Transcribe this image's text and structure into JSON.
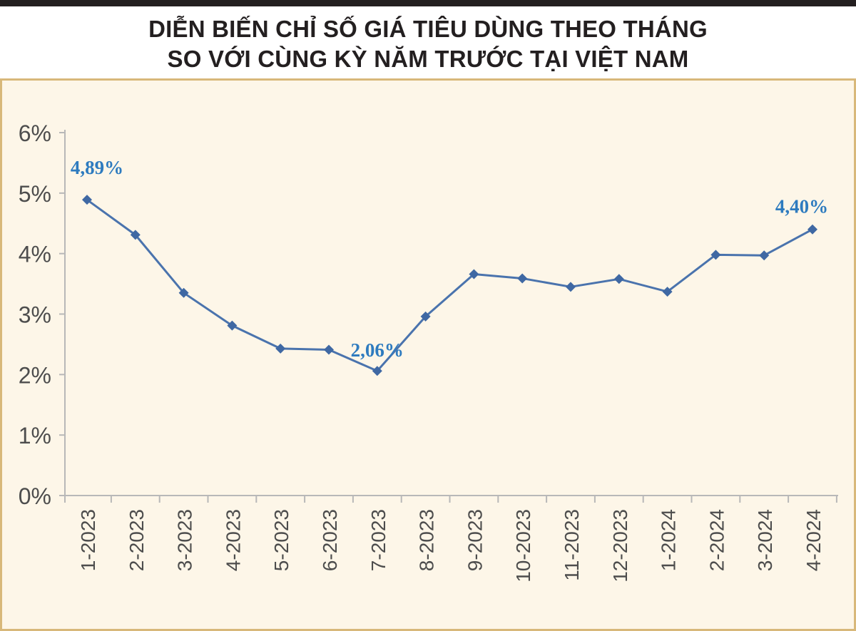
{
  "title": {
    "line1": "DIỄN BIẾN CHỈ SỐ GIÁ TIÊU DÙNG THEO THÁNG",
    "line2": "SO VỚI CÙNG KỲ NĂM TRƯỚC TẠI VIỆT NAM"
  },
  "colors": {
    "line": "#4a73ad",
    "marker": "#3f68a3",
    "annotation": "#2e7bbf",
    "axis": "#b8b8b8",
    "tick_text": "#4d4d4d",
    "panel_bg": "#fdf6e8",
    "panel_border": "#d8b87a"
  },
  "chart_data": {
    "type": "line",
    "title": "DIỄN BIẾN CHỈ SỐ GIÁ TIÊU DÙNG THEO THÁNG SO VỚI CÙNG KỲ NĂM TRƯỚC TẠI VIỆT NAM",
    "xlabel": "",
    "ylabel": "",
    "categories": [
      "1-2023",
      "2-2023",
      "3-2023",
      "4-2023",
      "5-2023",
      "6-2023",
      "7-2023",
      "8-2023",
      "9-2023",
      "10-2023",
      "11-2023",
      "12-2023",
      "1-2024",
      "2-2024",
      "3-2024",
      "4-2024"
    ],
    "series": [
      {
        "values": [
          4.89,
          4.31,
          3.35,
          2.81,
          2.43,
          2.41,
          2.06,
          2.96,
          3.66,
          3.59,
          3.45,
          3.58,
          3.37,
          3.98,
          3.97,
          4.4
        ]
      }
    ],
    "y_ticks": [
      "0%",
      "1%",
      "2%",
      "3%",
      "4%",
      "5%",
      "6%"
    ],
    "ylim": [
      0,
      6
    ],
    "grid": false,
    "legend": "none",
    "annotations": [
      {
        "index": 0,
        "text": "4,89%"
      },
      {
        "index": 6,
        "text": "2,06%"
      },
      {
        "index": 15,
        "text": "4,40%"
      }
    ]
  }
}
